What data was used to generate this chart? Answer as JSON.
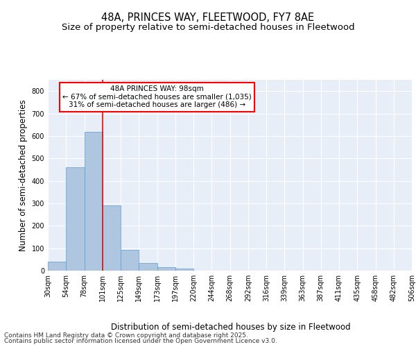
{
  "title": "48A, PRINCES WAY, FLEETWOOD, FY7 8AE",
  "subtitle": "Size of property relative to semi-detached houses in Fleetwood",
  "xlabel": "Distribution of semi-detached houses by size in Fleetwood",
  "ylabel": "Number of semi-detached properties",
  "bar_values": [
    40,
    460,
    617,
    290,
    93,
    33,
    15,
    10,
    0,
    0,
    0,
    0,
    0,
    0,
    0,
    0,
    0,
    0,
    0,
    0
  ],
  "categories": [
    "30sqm",
    "54sqm",
    "78sqm",
    "101sqm",
    "125sqm",
    "149sqm",
    "173sqm",
    "197sqm",
    "220sqm",
    "244sqm",
    "268sqm",
    "292sqm",
    "316sqm",
    "339sqm",
    "363sqm",
    "387sqm",
    "411sqm",
    "435sqm",
    "458sqm",
    "482sqm",
    "506sqm"
  ],
  "bar_color": "#aec6e0",
  "bar_edge_color": "#5b9bd5",
  "vline_x": 3.0,
  "vline_color": "red",
  "ylim": [
    0,
    850
  ],
  "yticks": [
    0,
    100,
    200,
    300,
    400,
    500,
    600,
    700,
    800
  ],
  "annotation_title": "48A PRINCES WAY: 98sqm",
  "annotation_line1": "← 67% of semi-detached houses are smaller (1,035)",
  "annotation_line2": "31% of semi-detached houses are larger (486) →",
  "footer_line1": "Contains HM Land Registry data © Crown copyright and database right 2025.",
  "footer_line2": "Contains public sector information licensed under the Open Government Licence v3.0.",
  "bg_color": "#e8eef8",
  "title_fontsize": 10.5,
  "subtitle_fontsize": 9.5,
  "axis_label_fontsize": 8.5,
  "tick_fontsize": 7,
  "footer_fontsize": 6.5,
  "annotation_fontsize": 7.5
}
